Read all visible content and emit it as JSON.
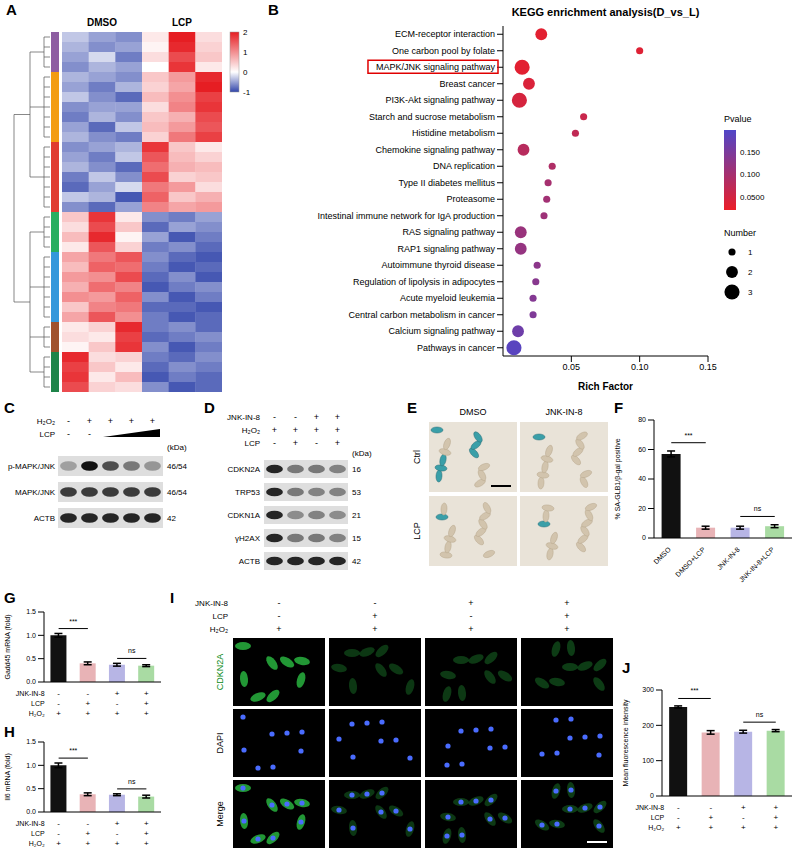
{
  "chart_data": [
    {
      "panel": "A",
      "type": "heatmap",
      "column_groups": [
        {
          "label": "DMSO",
          "count": 3
        },
        {
          "label": "LCP",
          "count": 3
        }
      ],
      "row_groups": [
        {
          "color": "#8e5ea2",
          "rows": 4
        },
        {
          "color": "#f39c12",
          "rows": 7
        },
        {
          "color": "#e03c31",
          "rows": 7
        },
        {
          "color": "#27ae60",
          "rows": 4
        },
        {
          "color": "#3498db",
          "rows": 7
        },
        {
          "color": "#a0522d",
          "rows": 3
        },
        {
          "color": "#1e8449",
          "rows": 4
        }
      ],
      "cells": [
        [
          -0.3,
          -0.5,
          -0.6,
          0.2,
          2.0,
          0.3
        ],
        [
          -0.4,
          -0.6,
          -0.5,
          0.1,
          1.9,
          0.4
        ],
        [
          -0.5,
          -0.2,
          -0.7,
          0.3,
          1.6,
          0.5
        ],
        [
          -0.6,
          -0.4,
          -0.5,
          0.0,
          1.8,
          0.2
        ],
        [
          -0.4,
          -0.5,
          -0.6,
          0.5,
          0.9,
          1.9
        ],
        [
          -0.5,
          -0.7,
          -0.4,
          0.4,
          0.8,
          2.0
        ],
        [
          -0.3,
          -0.6,
          -0.8,
          0.6,
          1.0,
          1.7
        ],
        [
          -0.6,
          -0.5,
          -0.5,
          0.3,
          1.1,
          1.8
        ],
        [
          -0.7,
          -0.4,
          -0.6,
          0.5,
          0.7,
          1.6
        ],
        [
          -0.5,
          -0.8,
          -0.3,
          0.6,
          0.9,
          1.5
        ],
        [
          -0.4,
          -0.6,
          -0.7,
          0.4,
          1.2,
          1.7
        ],
        [
          -0.6,
          -0.5,
          -0.4,
          1.8,
          0.5,
          0.2
        ],
        [
          -0.5,
          -0.7,
          -0.3,
          1.5,
          0.6,
          0.4
        ],
        [
          -0.4,
          -0.6,
          -0.8,
          1.3,
          0.7,
          0.6
        ],
        [
          -0.7,
          -0.3,
          -0.6,
          1.6,
          0.4,
          0.5
        ],
        [
          -0.8,
          -0.5,
          -0.2,
          1.2,
          0.9,
          0.3
        ],
        [
          -0.3,
          -0.4,
          -0.9,
          1.4,
          0.5,
          0.7
        ],
        [
          -0.6,
          -0.8,
          -0.5,
          1.1,
          0.8,
          0.9
        ],
        [
          0.5,
          1.8,
          0.2,
          -0.6,
          -0.7,
          -0.5
        ],
        [
          0.3,
          1.6,
          0.5,
          -0.8,
          -0.5,
          -0.6
        ],
        [
          0.6,
          1.9,
          0.1,
          -0.5,
          -0.9,
          -0.7
        ],
        [
          0.2,
          1.5,
          0.4,
          -0.7,
          -0.6,
          -0.8
        ],
        [
          0.8,
          1.2,
          1.5,
          -0.6,
          -0.8,
          -0.9
        ],
        [
          0.6,
          1.4,
          1.3,
          -0.7,
          -0.9,
          -0.8
        ],
        [
          0.9,
          1.0,
          1.6,
          -0.8,
          -0.6,
          -0.9
        ],
        [
          0.7,
          1.3,
          1.1,
          -0.9,
          -0.7,
          -0.6
        ],
        [
          1.0,
          0.9,
          1.4,
          -0.6,
          -0.9,
          -0.7
        ],
        [
          0.5,
          1.1,
          1.2,
          -0.8,
          -0.8,
          -0.9
        ],
        [
          0.8,
          1.5,
          1.0,
          -0.7,
          -0.9,
          -0.8
        ],
        [
          0.2,
          0.4,
          1.9,
          -0.7,
          -0.6,
          -0.8
        ],
        [
          0.3,
          0.2,
          1.7,
          -0.8,
          -0.7,
          -0.6
        ],
        [
          0.1,
          0.5,
          1.8,
          -0.6,
          -0.9,
          -0.7
        ],
        [
          1.9,
          0.3,
          0.4,
          -0.7,
          -0.8,
          -0.6
        ],
        [
          1.7,
          0.5,
          0.2,
          -0.8,
          -0.6,
          -0.7
        ],
        [
          1.8,
          0.2,
          0.6,
          -0.9,
          -0.7,
          -0.8
        ],
        [
          1.6,
          0.4,
          0.3,
          -0.6,
          -0.9,
          -0.8
        ]
      ],
      "color_range": [
        -1,
        2
      ],
      "color_ticks": [
        -1,
        0,
        1,
        2
      ],
      "tick_labels": false
    },
    {
      "panel": "B",
      "type": "scatter",
      "title": "KEGG enrichment analysis(D_vs_L)",
      "x_label": "Rich Factor",
      "categories": [
        "ECM-receptor interaction",
        "One carbon pool by folate",
        "MAPK/JNK signaling pathway",
        "Breast cancer",
        "PI3K-Akt signaling pathway",
        "Starch and sucrose metabolism",
        "Histidine metabolism",
        "Chemokine signaling pathway",
        "DNA replication",
        "Type II diabetes mellitus",
        "Proteasome",
        "Intestinal immune network for IgA production",
        "RAS signaling pathway",
        "RAP1 signaling pathway",
        "Autoimmune thyroid disease",
        "Regulation of lipolysis in adipocytes",
        "Acute myeloid leukemia",
        "Central carbon metabolism in cancer",
        "Calcium signaling pathway",
        "Pathways in cancer"
      ],
      "values": [
        0.028,
        0.1,
        0.014,
        0.019,
        0.012,
        0.059,
        0.053,
        0.015,
        0.036,
        0.033,
        0.032,
        0.03,
        0.013,
        0.013,
        0.025,
        0.024,
        0.022,
        0.022,
        0.011,
        0.008
      ],
      "pvalues": [
        0.03,
        0.035,
        0.03,
        0.04,
        0.045,
        0.06,
        0.07,
        0.08,
        0.09,
        0.1,
        0.105,
        0.11,
        0.115,
        0.12,
        0.13,
        0.135,
        0.14,
        0.145,
        0.165,
        0.19
      ],
      "numbers": [
        2,
        1,
        3,
        2,
        3,
        1,
        1,
        2,
        1,
        1,
        1,
        1,
        2,
        2,
        1,
        1,
        1,
        1,
        2,
        3
      ],
      "xlim": [
        0,
        0.15
      ],
      "xticks": [
        0.05,
        {
          "value": 0.1,
          "label": "0.10"
        },
        0.15
      ],
      "color_title": "Pvalue",
      "color_range": [
        0.02,
        0.2
      ],
      "color_ticks": [
        {
          "value": 0.05,
          "label": "0.0500"
        },
        {
          "value": 0.1,
          "label": "0.100"
        },
        {
          "value": 0.15,
          "label": "0.150"
        }
      ],
      "size_title": "Number",
      "size_ticks": [
        1,
        2,
        3
      ],
      "highlight": 2,
      "grid": false
    },
    {
      "panel": "F",
      "type": "bar",
      "y_label": "% SA-GLB1/β-gal positive",
      "categories": [
        "DMSO",
        "DMSO+LCP",
        "JNK-IN-8",
        "JNK-IN-8+LCP"
      ],
      "values": [
        57,
        7,
        7,
        8
      ],
      "errors": [
        2,
        1,
        1,
        1
      ],
      "colors": [
        "#111111",
        "#e8b3b6",
        "#b7b5e5",
        "#a9dba3"
      ],
      "ylim": [
        0,
        80
      ],
      "yticks": [
        0,
        20,
        40,
        60,
        80
      ],
      "significance": [
        {
          "from": 0,
          "to": 1,
          "label": "***"
        },
        {
          "from": 2,
          "to": 3,
          "label": "ns"
        }
      ]
    },
    {
      "panel": "G",
      "type": "bar",
      "y_label": "Gadd45 mRNA (fold)",
      "values": [
        1.0,
        0.4,
        0.37,
        0.35
      ],
      "errors": [
        0.04,
        0.03,
        0.03,
        0.02
      ],
      "colors": [
        "#111111",
        "#e8b3b6",
        "#b7b5e5",
        "#a9dba3"
      ],
      "ylim": [
        0,
        1.5
      ],
      "yticks": [
        {
          "value": 0,
          "label": "0.0"
        },
        0.5,
        {
          "value": 1,
          "label": "1.0"
        },
        1.5
      ],
      "treatments": [
        {
          "name": "JNK-IN-8",
          "signs": [
            "-",
            "-",
            "+",
            "+"
          ]
        },
        {
          "name": "LCP",
          "signs": [
            "-",
            "+",
            "-",
            "+"
          ]
        },
        {
          "name": "H₂O₂",
          "signs": [
            "+",
            "+",
            "+",
            "+"
          ]
        }
      ],
      "significance": [
        {
          "from": 0,
          "to": 1,
          "label": "***"
        },
        {
          "from": 2,
          "to": 3,
          "label": "ns"
        }
      ]
    },
    {
      "panel": "H",
      "type": "bar",
      "y_label": "Il6 mRNA (fold)",
      "values": [
        1.0,
        0.38,
        0.37,
        0.33
      ],
      "errors": [
        0.05,
        0.03,
        0.02,
        0.03
      ],
      "colors": [
        "#111111",
        "#e8b3b6",
        "#b7b5e5",
        "#a9dba3"
      ],
      "ylim": [
        0,
        1.5
      ],
      "yticks": [
        {
          "value": 0,
          "label": "0.0"
        },
        0.5,
        {
          "value": 1,
          "label": "1.0"
        },
        1.5
      ],
      "treatments": [
        {
          "name": "JNK-IN-8",
          "signs": [
            "-",
            "-",
            "+",
            "+"
          ]
        },
        {
          "name": "LCP",
          "signs": [
            "-",
            "+",
            "-",
            "+"
          ]
        },
        {
          "name": "H₂O₂",
          "signs": [
            "+",
            "+",
            "+",
            "+"
          ]
        }
      ],
      "significance": [
        {
          "from": 0,
          "to": 1,
          "label": "***"
        },
        {
          "from": 2,
          "to": 3,
          "label": "ns"
        }
      ]
    },
    {
      "panel": "J",
      "type": "bar",
      "y_label": "Mean fluorescence intensity",
      "values": [
        252,
        180,
        182,
        185
      ],
      "errors": [
        3,
        5,
        4,
        3
      ],
      "colors": [
        "#111111",
        "#e8b3b6",
        "#b7b5e5",
        "#a9dba3"
      ],
      "ylim": [
        0,
        300
      ],
      "yticks": [
        0,
        100,
        200,
        300
      ],
      "treatments": [
        {
          "name": "JNK-IN-8",
          "signs": [
            "-",
            "-",
            "+",
            "+"
          ]
        },
        {
          "name": "LCP",
          "signs": [
            "-",
            "+",
            "-",
            "+"
          ]
        },
        {
          "name": "H₂O₂",
          "signs": [
            "+",
            "+",
            "+",
            "+"
          ]
        }
      ],
      "significance": [
        {
          "from": 0,
          "to": 1,
          "label": "***"
        },
        {
          "from": 2,
          "to": 3,
          "label": "ns"
        }
      ]
    }
  ],
  "blots": [
    {
      "panel": "C",
      "unit": "(kDa)",
      "treatments": [
        {
          "name": "H₂O₂",
          "signs": [
            "-",
            "+",
            "+",
            "+",
            "+"
          ]
        },
        {
          "name": "LCP",
          "signs": [
            "-",
            "-"
          ],
          "gradient": true
        }
      ],
      "rows": [
        {
          "label": "p-MAPK/JNK",
          "kda": "46/54",
          "bands": [
            0.3,
            1.0,
            0.7,
            0.5,
            0.35
          ]
        },
        {
          "label": "MAPK/JNK",
          "kda": "46/54",
          "bands": [
            0.8,
            0.8,
            0.8,
            0.8,
            0.8
          ]
        },
        {
          "label": "ACTB",
          "kda": "42",
          "bands": [
            0.9,
            0.9,
            0.9,
            0.9,
            0.9
          ]
        }
      ]
    },
    {
      "panel": "D",
      "unit": "(kDa)",
      "treatments": [
        {
          "name": "JNK-IN-8",
          "signs": [
            "-",
            "-",
            "+",
            "+"
          ]
        },
        {
          "name": "H₂O₂",
          "signs": [
            "+",
            "+",
            "+",
            "+"
          ]
        },
        {
          "name": "LCP",
          "signs": [
            "-",
            "+",
            "-",
            "+"
          ]
        }
      ],
      "rows": [
        {
          "label": "CDKN2A",
          "kda": "16",
          "bands": [
            0.9,
            0.5,
            0.5,
            0.45
          ]
        },
        {
          "label": "TRP53",
          "kda": "53",
          "bands": [
            0.9,
            0.5,
            0.45,
            0.45
          ]
        },
        {
          "label": "CDKN1A",
          "kda": "21",
          "bands": [
            0.9,
            0.4,
            0.45,
            0.4
          ]
        },
        {
          "label": "γH2AX",
          "kda": "15",
          "bands": [
            0.9,
            0.5,
            0.5,
            0.45
          ]
        },
        {
          "label": "ACTB",
          "kda": "42",
          "bands": [
            0.9,
            0.9,
            0.9,
            0.9
          ]
        }
      ]
    }
  ],
  "micrographs": [
    {
      "panel": "E",
      "columns": [
        "DMSO",
        "JNK-IN-8"
      ],
      "rows": [
        "Ctrl",
        "LCP"
      ]
    },
    {
      "panel": "I",
      "treatments": [
        {
          "name": "JNK-IN-8",
          "signs": [
            "-",
            "-",
            "+",
            "+"
          ]
        },
        {
          "name": "LCP",
          "signs": [
            "-",
            "+",
            "-",
            "+"
          ]
        },
        {
          "name": "H₂O₂",
          "signs": [
            "+",
            "+",
            "+",
            "+"
          ]
        }
      ],
      "rows": [
        "CDKN2A",
        "DAPI",
        "Merge"
      ]
    }
  ]
}
